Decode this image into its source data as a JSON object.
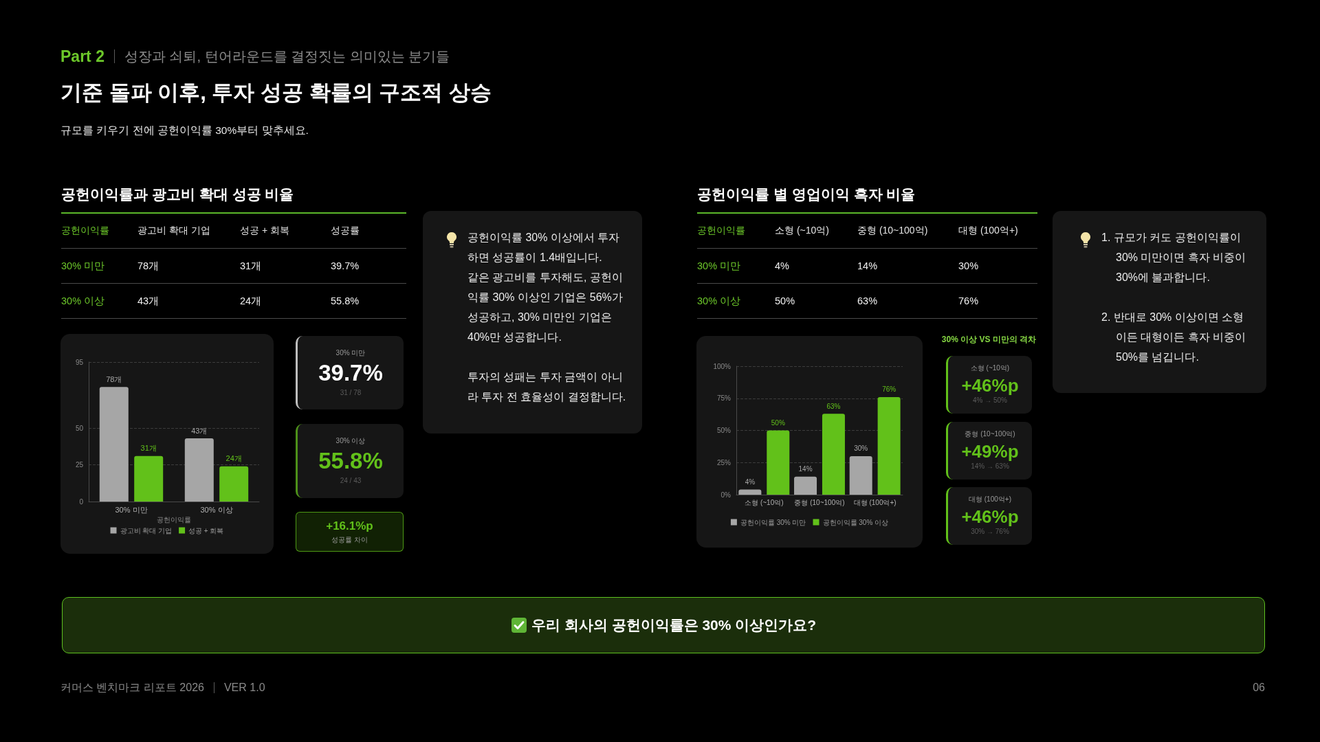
{
  "chart_data": [
    {
      "type": "other",
      "annotations": [
        "Part 2",
        "성장과 쇠퇴, 턴어라운드를 결정짓는 의미있는 분기들"
      ],
      "title": "기준 돌파 이후, 투자 성공 확률의 구조적 상승",
      "subtitle": "규모를 키우기 전에 공헌이익률 30%부터 맞추세요."
    },
    {
      "type": "other",
      "title": "공헌이익률과 광고비 확대 성공 비율",
      "ylabel": "공헌이익률",
      "categories": [
        "광고비 확대 기업",
        "성공 + 회복",
        "성공률"
      ],
      "y_categories": [
        "30% 미만",
        "30% 이상"
      ],
      "cell_labels": [
        [
          "78개",
          "31개",
          "39.7%"
        ],
        [
          "43개",
          "24개",
          "55.8%"
        ]
      ]
    },
    {
      "type": "bar",
      "categories": [
        "30% 미만",
        "30% 이상"
      ],
      "xlabel": "공헌이익률",
      "series": [
        {
          "name": "광고비 확대 기업",
          "color": "#a6a6a6",
          "values": [
            78,
            43
          ],
          "value_labels": [
            "78개",
            "43개"
          ]
        },
        {
          "name": "성공 + 회복",
          "color": "#62c11a",
          "values": [
            31,
            24
          ],
          "value_labels": [
            "31개",
            "24개"
          ]
        }
      ],
      "ylim": [
        0,
        95
      ],
      "yticks": [
        0,
        25,
        50,
        95
      ],
      "grid": "y",
      "legend": "bottom"
    },
    {
      "type": "other",
      "subtitle": "30% 미만",
      "title": "39.7%",
      "annotations": [
        "31 / 78"
      ],
      "color": "#ffffff"
    },
    {
      "type": "other",
      "subtitle": "30% 이상",
      "title": "55.8%",
      "annotations": [
        "24 / 43"
      ],
      "color": "#62c11a"
    },
    {
      "type": "other",
      "title": "+16.1%p",
      "annotations": [
        "성공률 차이"
      ],
      "color": "#62c11a"
    },
    {
      "type": "other",
      "annotations": [
        "공헌이익률 30% 이상에서 투자하면 성공률이 1.4배입니다.\n같은 광고비를 투자해도, 공헌이익률 30% 이상인 기업은 56%가 성공하고, 30% 미만인 기업은 40%만 성공합니다.",
        "투자의 성패는 투자 금액이 아니라 투자 전 효율성이 결정합니다."
      ]
    },
    {
      "type": "other",
      "title": "공헌이익률 별 영업이익 흑자 비율",
      "ylabel": "공헌이익률",
      "categories": [
        "소형 (~10억)",
        "중형 (10~100억)",
        "대형 (100억+)"
      ],
      "y_categories": [
        "30% 미만",
        "30% 이상"
      ],
      "cell_labels": [
        [
          "4%",
          "14%",
          "30%"
        ],
        [
          "50%",
          "63%",
          "76%"
        ]
      ]
    },
    {
      "type": "bar",
      "categories": [
        "소형 (~10억)",
        "중형 (10~100억)",
        "대형 (100억+)"
      ],
      "series": [
        {
          "name": "공헌이익률 30% 미만",
          "color": "#a6a6a6",
          "values": [
            4,
            14,
            30
          ],
          "value_labels": [
            "4%",
            "14%",
            "30%"
          ]
        },
        {
          "name": "공헌이익률 30% 이상",
          "color": "#62c11a",
          "values": [
            50,
            63,
            76
          ],
          "value_labels": [
            "50%",
            "63%",
            "76%"
          ]
        }
      ],
      "ylim": [
        0,
        100
      ],
      "yticks": [
        {
          "value": 0,
          "label": "0%"
        },
        {
          "value": 25,
          "label": "25%"
        },
        {
          "value": 50,
          "label": "50%"
        },
        {
          "value": 75,
          "label": "75%"
        },
        {
          "value": 100,
          "label": "100%"
        }
      ],
      "grid": "y",
      "legend": "bottom"
    },
    {
      "type": "other",
      "title": "30% 이상 VS 미만의 격차",
      "categories": [
        "소형 (~10억)",
        "중형 (10~100억)",
        "대형 (100억+)"
      ],
      "value_labels": [
        "+46%p",
        "+49%p",
        "+46%p"
      ],
      "annotations": [
        "4% → 50%",
        "14% → 63%",
        "30% → 76%"
      ],
      "color": "#62c11a"
    },
    {
      "type": "other",
      "annotations": [
        "1. 규모가 커도 공헌이익률이 30% 미만이면 흑자 비중이 30%에 불과합니다.",
        "2. 반대로 30% 이상이면 소형이든 대형이든 흑자 비중이 50%를 넘깁니다."
      ]
    },
    {
      "type": "other",
      "title": "우리 회사의 공헌이익률은 30% 이상인가요?"
    },
    {
      "type": "other",
      "annotations": [
        "커머스 벤치마크 리포트 2026",
        "VER 1.0",
        "06"
      ]
    }
  ]
}
